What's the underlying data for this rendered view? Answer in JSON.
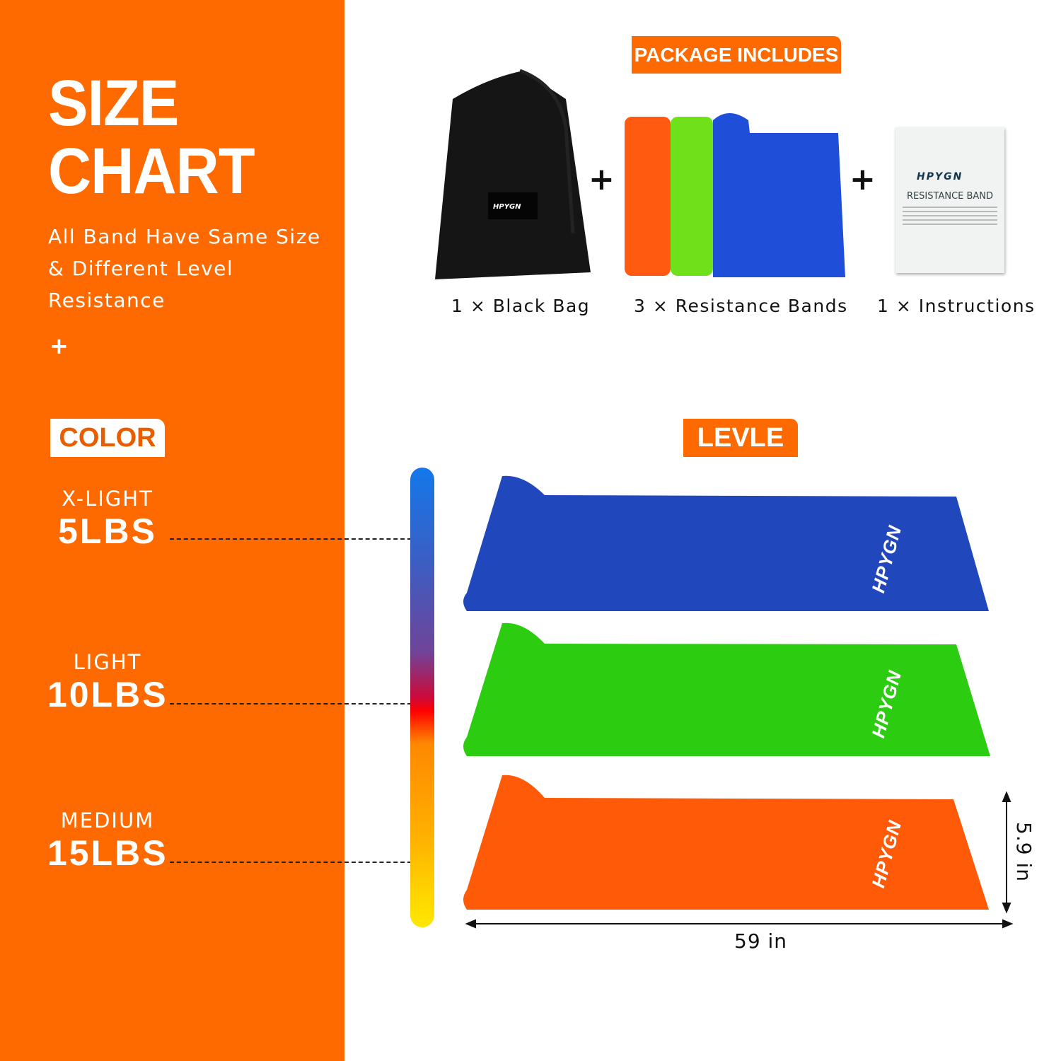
{
  "left_panel": {
    "title_line1": "SIZE",
    "title_line2": "CHART",
    "subtitle": "All Band Have Same Size & Different Level Resistance",
    "plus": "+",
    "color_tag": "COLOR",
    "levels": [
      {
        "name": "X-LIGHT",
        "weight": "5LBS",
        "color": "#1e47c4"
      },
      {
        "name": "LIGHT",
        "weight": "10LBS",
        "color": "#2ecc11"
      },
      {
        "name": "MEDIUM",
        "weight": "15LBS",
        "color": "#ff5a0a"
      }
    ]
  },
  "package": {
    "tag": "PACKAGE INCLUDES",
    "items": [
      "1 × Black Bag",
      "3 × Resistance Bands",
      "1 × Instructions"
    ],
    "plus": "+",
    "brand": "HPYGN",
    "instructions_title": "RESISTANCE BAND"
  },
  "levle_tag": "LEVLE",
  "dimensions": {
    "length": "59 in",
    "width": "5.9 in"
  },
  "colors": {
    "brand_orange": "#ff6a00"
  }
}
